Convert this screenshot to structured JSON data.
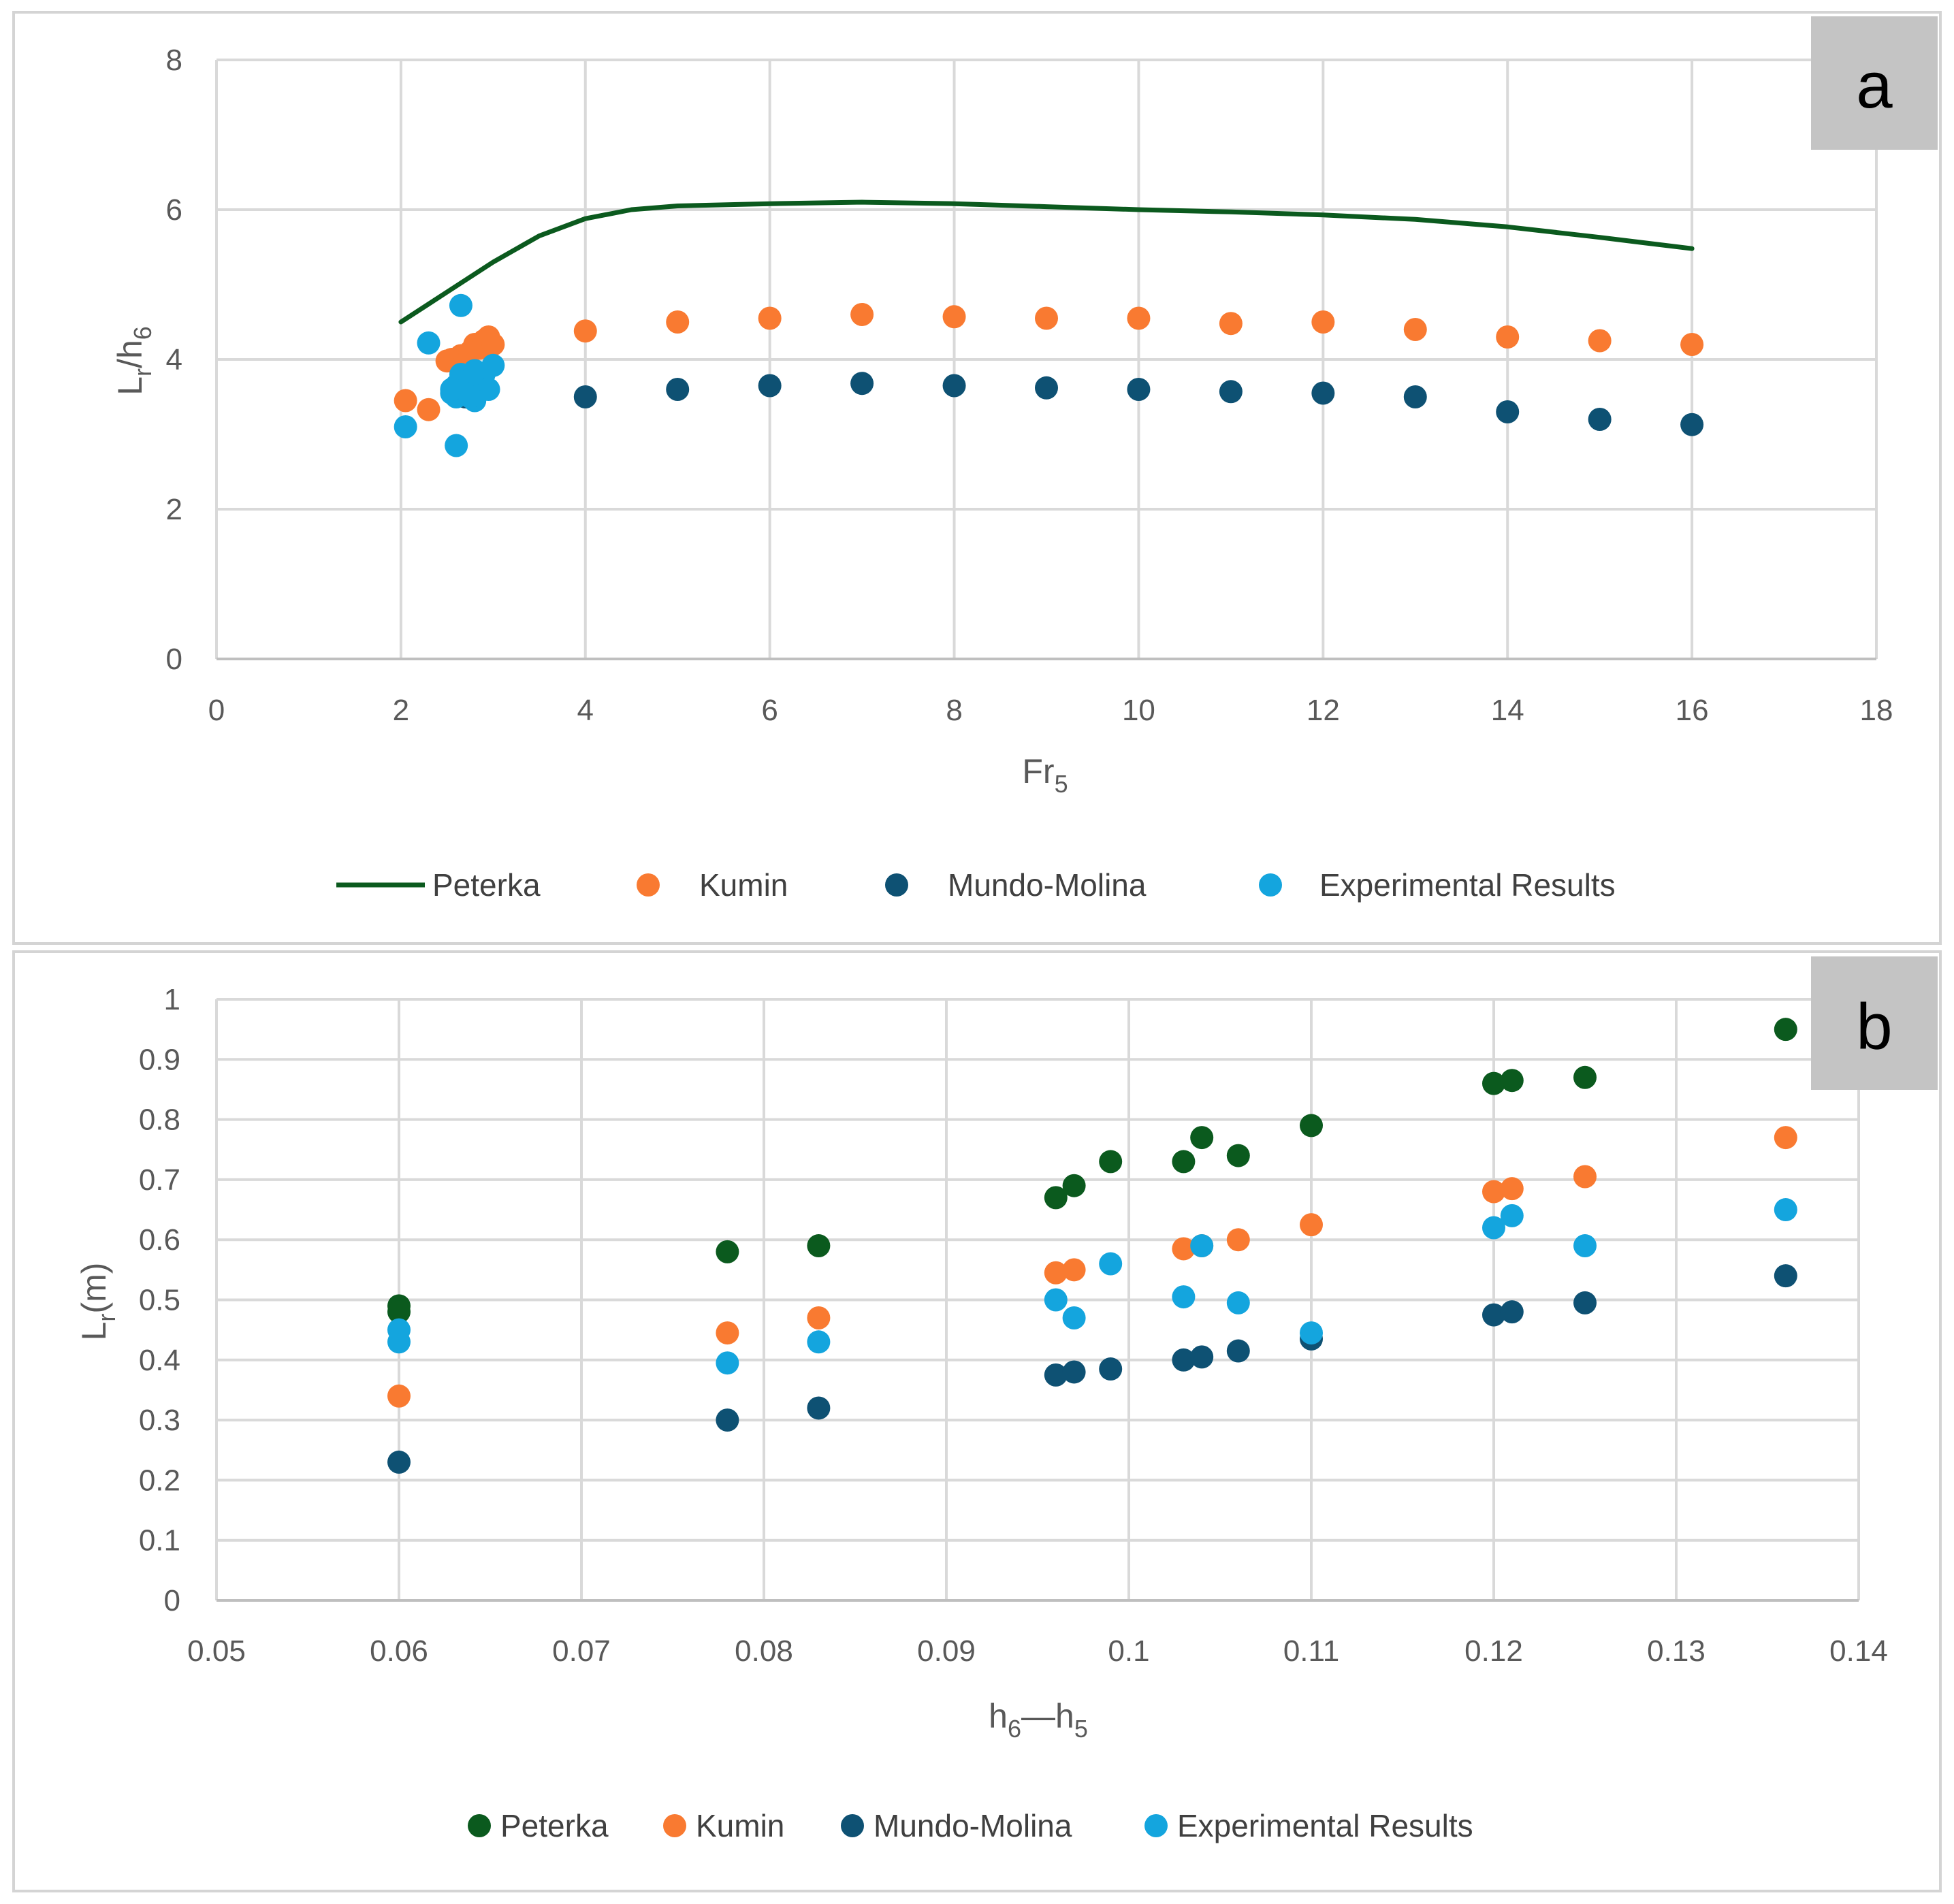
{
  "colors": {
    "peterka": "#0b5a1e",
    "kumin": "#f97a31",
    "mundo_molina": "#0e5173",
    "experimental": "#14a5de",
    "grid": "#d9d9d9",
    "axis": "#bfbfbf",
    "panel_label_bg": "#c4c4c4"
  },
  "chart_data": [
    {
      "panel": "a",
      "type": "scatter",
      "xlabel": "Fr",
      "xlabel_sub": "5",
      "ylabel": "L",
      "ylabel_sub": "r",
      "ylabel_rest": "/h",
      "ylabel_sub2": "6",
      "xlim": [
        0,
        18
      ],
      "ylim": [
        0,
        8
      ],
      "xticks": [
        "0",
        "2",
        "4",
        "6",
        "8",
        "10",
        "12",
        "14",
        "16",
        "18"
      ],
      "yticks": [
        "0",
        "2",
        "4",
        "6",
        "8"
      ],
      "xtick_values": [
        0,
        2,
        4,
        6,
        8,
        10,
        12,
        14,
        16,
        18
      ],
      "ytick_values": [
        0,
        2,
        4,
        6,
        8
      ],
      "series": [
        {
          "name": "Peterka",
          "kind": "line",
          "color_key": "peterka",
          "x": [
            2,
            2.5,
            3,
            3.5,
            4,
            4.5,
            5,
            6,
            7,
            8,
            9,
            10,
            11,
            12,
            13,
            14,
            15,
            16
          ],
          "y": [
            4.5,
            4.9,
            5.3,
            5.65,
            5.88,
            6.0,
            6.05,
            6.08,
            6.1,
            6.08,
            6.04,
            6.0,
            5.97,
            5.93,
            5.87,
            5.77,
            5.63,
            5.48
          ]
        },
        {
          "name": "Kumin",
          "kind": "scatter",
          "color_key": "kumin",
          "x": [
            2.05,
            2.3,
            2.5,
            2.55,
            2.6,
            2.65,
            2.7,
            2.75,
            2.8,
            2.85,
            2.9,
            2.95,
            3.0,
            4,
            5,
            6,
            7,
            8,
            9,
            10,
            11,
            12,
            13,
            14,
            15,
            16
          ],
          "y": [
            3.45,
            3.33,
            3.98,
            4.0,
            3.95,
            4.05,
            4.0,
            4.1,
            4.2,
            4.15,
            4.25,
            4.3,
            4.2,
            4.38,
            4.5,
            4.55,
            4.6,
            4.57,
            4.55,
            4.55,
            4.48,
            4.5,
            4.4,
            4.3,
            4.25,
            4.2
          ]
        },
        {
          "name": "Mundo-Molina",
          "kind": "scatter",
          "color_key": "mundo_molina",
          "x": [
            2.6,
            2.7,
            2.8,
            4,
            5,
            6,
            7,
            8,
            9,
            10,
            11,
            12,
            13,
            14,
            15,
            16
          ],
          "y": [
            3.55,
            3.5,
            3.6,
            3.5,
            3.6,
            3.65,
            3.68,
            3.65,
            3.62,
            3.6,
            3.57,
            3.55,
            3.5,
            3.3,
            3.2,
            3.13
          ]
        },
        {
          "name": "Experimental Results",
          "kind": "scatter",
          "color_key": "experimental",
          "x": [
            2.05,
            2.3,
            2.65,
            2.6,
            2.55,
            2.6,
            2.65,
            2.7,
            2.75,
            2.8,
            2.85,
            2.9,
            2.95,
            3.0,
            2.6,
            2.7,
            2.8,
            2.55,
            2.75
          ],
          "y": [
            3.1,
            4.22,
            4.72,
            2.85,
            3.55,
            3.65,
            3.8,
            3.6,
            3.7,
            3.85,
            3.75,
            3.8,
            3.6,
            3.92,
            3.5,
            3.55,
            3.45,
            3.6,
            3.5
          ]
        }
      ],
      "legend": [
        "Peterka",
        "Kumin",
        "Mundo-Molina",
        "Experimental Results"
      ]
    },
    {
      "panel": "b",
      "type": "scatter",
      "xlabel": "h",
      "xlabel_sub": "6",
      "xlabel_mid": "—h",
      "xlabel_sub2": "5",
      "ylabel": "L",
      "ylabel_sub": "r",
      "ylabel_rest": "(m)",
      "xlim": [
        0.05,
        0.14
      ],
      "ylim": [
        0,
        1
      ],
      "xticks": [
        "0.05",
        "0.06",
        "0.07",
        "0.08",
        "0.09",
        "0.1",
        "0.11",
        "0.12",
        "0.13",
        "0.14"
      ],
      "yticks": [
        "0",
        "0.1",
        "0.2",
        "0.3",
        "0.4",
        "0.5",
        "0.6",
        "0.7",
        "0.8",
        "0.9",
        "1"
      ],
      "xtick_values": [
        0.05,
        0.06,
        0.07,
        0.08,
        0.09,
        0.1,
        0.11,
        0.12,
        0.13,
        0.14
      ],
      "ytick_values": [
        0,
        0.1,
        0.2,
        0.3,
        0.4,
        0.5,
        0.6,
        0.7,
        0.8,
        0.9,
        1
      ],
      "series": [
        {
          "name": "Peterka",
          "kind": "scatter",
          "color_key": "peterka",
          "x": [
            0.06,
            0.06,
            0.078,
            0.083,
            0.096,
            0.097,
            0.099,
            0.103,
            0.104,
            0.106,
            0.11,
            0.12,
            0.121,
            0.125,
            0.136
          ],
          "y": [
            0.49,
            0.48,
            0.58,
            0.59,
            0.67,
            0.69,
            0.73,
            0.73,
            0.77,
            0.74,
            0.79,
            0.86,
            0.865,
            0.87,
            0.95
          ]
        },
        {
          "name": "Kumin",
          "kind": "scatter",
          "color_key": "kumin",
          "x": [
            0.06,
            0.078,
            0.083,
            0.096,
            0.097,
            0.103,
            0.104,
            0.106,
            0.11,
            0.12,
            0.121,
            0.125,
            0.136
          ],
          "y": [
            0.34,
            0.445,
            0.47,
            0.545,
            0.55,
            0.585,
            0.59,
            0.6,
            0.625,
            0.68,
            0.685,
            0.705,
            0.77
          ]
        },
        {
          "name": "Mundo-Molina",
          "kind": "scatter",
          "color_key": "mundo_molina",
          "x": [
            0.06,
            0.078,
            0.083,
            0.096,
            0.097,
            0.099,
            0.103,
            0.104,
            0.106,
            0.11,
            0.12,
            0.121,
            0.125,
            0.136
          ],
          "y": [
            0.23,
            0.3,
            0.32,
            0.375,
            0.38,
            0.385,
            0.4,
            0.405,
            0.415,
            0.435,
            0.475,
            0.48,
            0.495,
            0.54
          ]
        },
        {
          "name": "Experimental Results",
          "kind": "scatter",
          "color_key": "experimental",
          "x": [
            0.06,
            0.06,
            0.078,
            0.083,
            0.096,
            0.097,
            0.099,
            0.103,
            0.104,
            0.106,
            0.11,
            0.12,
            0.121,
            0.125,
            0.136
          ],
          "y": [
            0.45,
            0.43,
            0.395,
            0.43,
            0.5,
            0.47,
            0.56,
            0.505,
            0.59,
            0.495,
            0.445,
            0.62,
            0.64,
            0.59,
            0.65
          ]
        }
      ],
      "legend": [
        "Peterka",
        "Kumin",
        "Mundo-Molina",
        "Experimental Results"
      ]
    }
  ]
}
